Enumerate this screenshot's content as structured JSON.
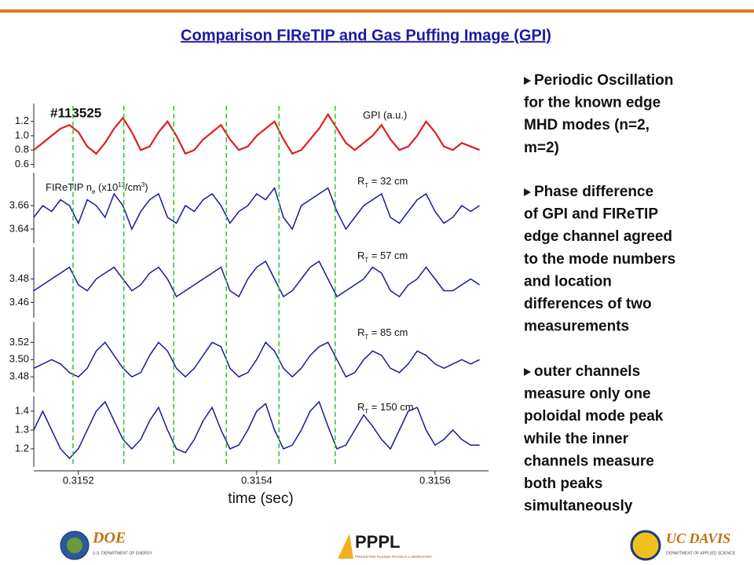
{
  "header": {
    "title": "Comparison FIReTIP and Gas Puffing Image (GPI)"
  },
  "chart_data": {
    "type": "line",
    "shot": "#113525",
    "xlabel": "time (sec)",
    "xlim": [
      0.31515,
      0.31566
    ],
    "xticks": [
      0.3152,
      0.3154,
      0.3156
    ],
    "markers": [
      0.315194,
      0.315251,
      0.315307,
      0.315366,
      0.315425,
      0.315488
    ],
    "marker_color": "#22cc22",
    "x": [
      0.31515,
      0.31516,
      0.31517,
      0.31518,
      0.31519,
      0.3152,
      0.31521,
      0.31522,
      0.31523,
      0.31524,
      0.31525,
      0.31526,
      0.31527,
      0.31528,
      0.31529,
      0.3153,
      0.31531,
      0.31532,
      0.31533,
      0.31534,
      0.31535,
      0.31536,
      0.31537,
      0.31538,
      0.31539,
      0.3154,
      0.31541,
      0.31542,
      0.31543,
      0.31544,
      0.31545,
      0.31546,
      0.31547,
      0.31548,
      0.31549,
      0.3155,
      0.31551,
      0.31552,
      0.31553,
      0.31554,
      0.31555,
      0.31556,
      0.31557,
      0.31558,
      0.31559,
      0.3156,
      0.31561,
      0.31562,
      0.31563,
      0.31564,
      0.31565
    ],
    "panels": [
      {
        "label": [
          "GPI (a.u.)"
        ],
        "color": "#dd1f1f",
        "ylim": [
          0.55,
          1.45
        ],
        "yticks": [
          0.6,
          0.8,
          {
            "value": 1,
            "label": "1.0"
          },
          1.2
        ],
        "values": [
          0.8,
          0.9,
          1.0,
          1.1,
          1.15,
          1.05,
          0.85,
          0.75,
          0.9,
          1.1,
          1.25,
          1.05,
          0.8,
          0.85,
          1.05,
          1.2,
          1.0,
          0.75,
          0.8,
          0.95,
          1.05,
          1.15,
          0.95,
          0.8,
          0.85,
          1.0,
          1.1,
          1.2,
          0.95,
          0.75,
          0.8,
          0.95,
          1.1,
          1.3,
          1.1,
          0.9,
          0.8,
          0.9,
          1.0,
          1.15,
          0.95,
          0.8,
          0.85,
          1.0,
          1.2,
          1.05,
          0.85,
          0.8,
          0.9,
          0.85,
          0.8
        ]
      },
      {
        "label": [
          "R",
          "T",
          " = 32 cm"
        ],
        "ylabel": [
          "FIReTIP n",
          "e",
          " (x10",
          "13",
          "/cm",
          "3",
          ")"
        ],
        "color": "#1a1a9a",
        "ylim": [
          3.628,
          3.688
        ],
        "yticks": [
          3.64,
          3.66
        ],
        "values": [
          3.65,
          3.66,
          3.655,
          3.665,
          3.66,
          3.645,
          3.665,
          3.66,
          3.65,
          3.67,
          3.66,
          3.64,
          3.655,
          3.665,
          3.67,
          3.65,
          3.645,
          3.66,
          3.655,
          3.665,
          3.67,
          3.66,
          3.645,
          3.655,
          3.66,
          3.67,
          3.665,
          3.675,
          3.65,
          3.64,
          3.66,
          3.665,
          3.67,
          3.675,
          3.655,
          3.64,
          3.65,
          3.66,
          3.665,
          3.67,
          3.65,
          3.645,
          3.655,
          3.665,
          3.67,
          3.655,
          3.645,
          3.65,
          3.66,
          3.655,
          3.66
        ]
      },
      {
        "label": [
          "R",
          "T",
          " = 57 cm"
        ],
        "color": "#1a1a9a",
        "ylim": [
          3.447,
          3.507
        ],
        "yticks": [
          3.46,
          3.48
        ],
        "values": [
          3.47,
          3.475,
          3.48,
          3.485,
          3.49,
          3.475,
          3.47,
          3.48,
          3.485,
          3.49,
          3.48,
          3.47,
          3.475,
          3.485,
          3.49,
          3.48,
          3.465,
          3.47,
          3.475,
          3.48,
          3.485,
          3.49,
          3.47,
          3.465,
          3.48,
          3.49,
          3.495,
          3.48,
          3.465,
          3.47,
          3.48,
          3.49,
          3.495,
          3.48,
          3.465,
          3.47,
          3.475,
          3.48,
          3.49,
          3.485,
          3.47,
          3.465,
          3.475,
          3.48,
          3.49,
          3.48,
          3.47,
          3.47,
          3.475,
          3.48,
          3.475
        ]
      },
      {
        "label": [
          "R",
          "T",
          " = 85 cm"
        ],
        "color": "#1a1a9a",
        "ylim": [
          3.462,
          3.544
        ],
        "yticks": [
          3.48,
          {
            "value": 3.5,
            "label": "3.50"
          },
          3.52
        ],
        "values": [
          3.49,
          3.495,
          3.5,
          3.495,
          3.485,
          3.48,
          3.49,
          3.51,
          3.52,
          3.505,
          3.49,
          3.48,
          3.485,
          3.505,
          3.52,
          3.51,
          3.49,
          3.48,
          3.49,
          3.505,
          3.52,
          3.515,
          3.49,
          3.48,
          3.485,
          3.5,
          3.52,
          3.51,
          3.49,
          3.48,
          3.49,
          3.505,
          3.515,
          3.52,
          3.5,
          3.48,
          3.485,
          3.5,
          3.51,
          3.505,
          3.49,
          3.485,
          3.495,
          3.51,
          3.505,
          3.495,
          3.49,
          3.495,
          3.5,
          3.495,
          3.5
        ]
      },
      {
        "label": [
          "R",
          "T",
          " = 150 cm"
        ],
        "color": "#1a1a9a",
        "ylim": [
          1.104,
          1.479
        ],
        "yticks": [
          1.2,
          1.3,
          1.4
        ],
        "values": [
          1.3,
          1.4,
          1.3,
          1.2,
          1.15,
          1.2,
          1.3,
          1.4,
          1.45,
          1.35,
          1.25,
          1.2,
          1.25,
          1.35,
          1.42,
          1.3,
          1.2,
          1.18,
          1.25,
          1.35,
          1.42,
          1.3,
          1.2,
          1.22,
          1.3,
          1.4,
          1.44,
          1.3,
          1.2,
          1.22,
          1.3,
          1.4,
          1.45,
          1.32,
          1.2,
          1.22,
          1.3,
          1.38,
          1.32,
          1.25,
          1.2,
          1.3,
          1.4,
          1.42,
          1.3,
          1.22,
          1.25,
          1.3,
          1.25,
          1.22,
          1.22
        ]
      }
    ]
  },
  "bullets": [
    {
      "lines": [
        "Periodic Oscillation",
        "for the known edge",
        "MHD modes (n=2,",
        "m=2)"
      ]
    },
    {
      "lines": [
        "Phase difference",
        "of GPI and FIReTIP",
        "edge channel agreed",
        "to the mode numbers",
        "and location",
        "differences of two",
        "measurements"
      ]
    },
    {
      "lines": [
        "outer channels",
        "measure only one",
        "poloidal mode peak",
        "while the inner",
        "channels measure",
        "both peaks",
        "simultaneously"
      ]
    }
  ],
  "footer": {
    "doe": "DOE",
    "doe_sub": "U.S. DEPARTMENT OF ENERGY",
    "pppl": "PPPL",
    "pppl_sub": "PRINCETON PLASMA PHYSICS LABORATORY",
    "ucd": "UC DAVIS",
    "ucd_sub": "DEPARTMENT OF APPLIED SCIENCE"
  }
}
